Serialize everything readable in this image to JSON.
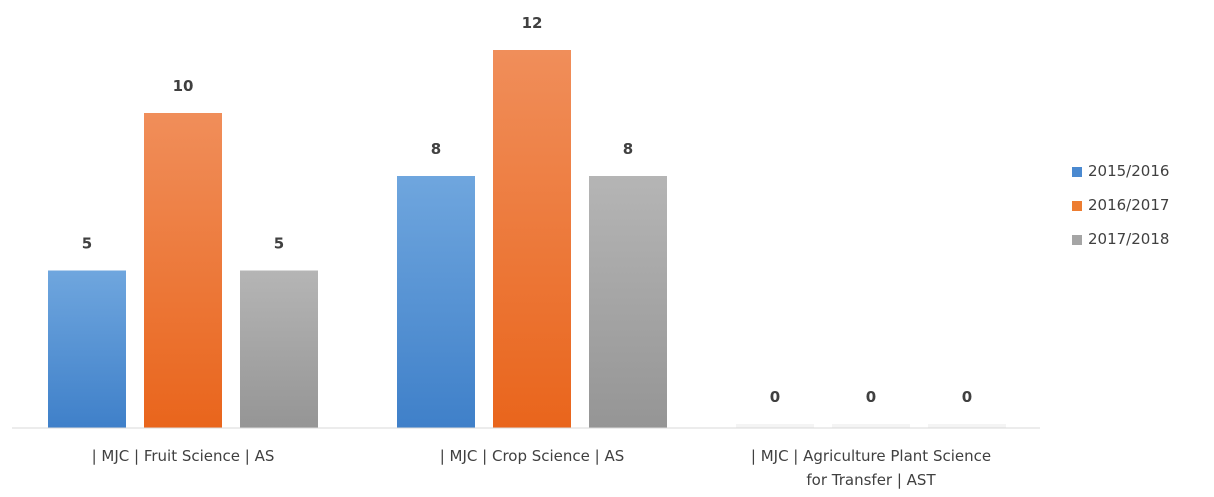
{
  "chart_data": {
    "type": "bar",
    "categories": [
      [
        "| MJC | Fruit Science | AS"
      ],
      [
        "| MJC | Crop Science | AS"
      ],
      [
        "| MJC | Agriculture Plant Science",
        "for Transfer | AST"
      ]
    ],
    "series": [
      {
        "name": "2015/2016",
        "values": [
          5,
          8,
          0
        ],
        "color": "#4a89d0"
      },
      {
        "name": "2016/2017",
        "values": [
          10,
          12,
          0
        ],
        "color": "#ed7d31"
      },
      {
        "name": "2017/2018",
        "values": [
          5,
          8,
          0
        ],
        "color": "#a5a5a5"
      }
    ],
    "ylim": [
      0,
      12.7
    ],
    "legend_position": "right",
    "grid": false,
    "data_labels": true
  }
}
